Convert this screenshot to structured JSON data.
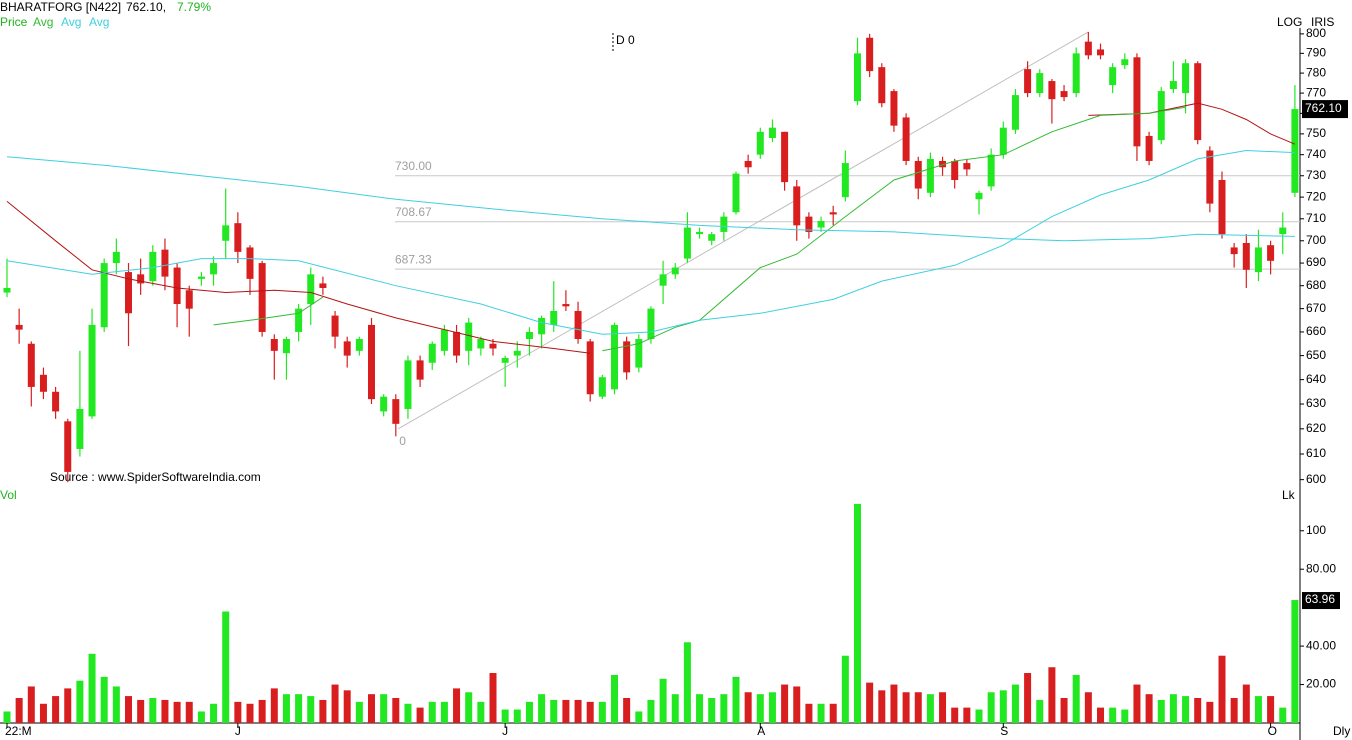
{
  "chart_data": [
    {
      "type": "candlestick",
      "header": {
        "symbol": "BHARATFORG [N422]",
        "price": "762.10,",
        "change": "7.79%"
      },
      "scale_label": "LOG",
      "indicator": "IRIS",
      "marker_label": "D 0",
      "source": "Source : www.SpiderSoftwareIndia.com",
      "log": true,
      "ylim": [
        596,
        802
      ],
      "yticks": [
        600,
        610,
        620,
        630,
        640,
        650,
        660,
        670,
        680,
        690,
        700,
        710,
        720,
        730,
        740,
        750,
        760,
        770,
        780,
        790,
        800
      ],
      "up_color": "#22e822",
      "down_color": "#d81e1e",
      "series": {
        "name": "Price",
        "open": [
          677,
          663,
          655,
          642,
          635,
          623,
          612,
          625,
          662,
          690,
          686,
          685,
          682,
          696,
          688,
          678,
          683,
          685,
          700,
          708,
          697,
          690,
          657,
          651,
          660,
          672,
          681,
          667,
          656,
          652,
          663,
          627,
          632,
          628,
          648,
          647,
          652,
          660,
          652,
          653,
          655,
          647,
          650,
          657,
          659,
          663,
          672,
          669,
          656,
          633,
          636,
          656,
          645,
          657,
          680,
          685,
          692,
          703,
          700,
          704,
          713,
          737,
          740,
          748,
          751,
          725,
          711,
          706,
          713,
          720,
          766,
          798,
          783,
          771,
          758,
          737,
          722,
          737,
          737,
          736,
          719,
          725,
          740,
          752,
          782,
          770,
          776,
          771,
          770,
          796,
          792,
          774,
          784,
          788,
          749,
          747,
          772,
          770,
          785,
          742,
          728,
          697,
          699,
          686,
          698,
          703,
          722
        ],
        "high": [
          692,
          670,
          656,
          645,
          637,
          624,
          652,
          670,
          692,
          701,
          690,
          692,
          698,
          701,
          690,
          680,
          686,
          693,
          724,
          713,
          698,
          691,
          659,
          658,
          672,
          688,
          684,
          669,
          658,
          658,
          666,
          634,
          634,
          650,
          650,
          656,
          663,
          663,
          666,
          658,
          657,
          650,
          656,
          662,
          667,
          682,
          678,
          673,
          657,
          642,
          664,
          658,
          659,
          671,
          691,
          690,
          713,
          706,
          704,
          713,
          732,
          740,
          753,
          757,
          751,
          728,
          713,
          711,
          716,
          742,
          798,
          800,
          785,
          772,
          760,
          739,
          741,
          739,
          738,
          738,
          723,
          743,
          756,
          772,
          786,
          782,
          777,
          774,
          793,
          801,
          795,
          785,
          790,
          790,
          751,
          773,
          786,
          787,
          786,
          744,
          732,
          699,
          703,
          705,
          700,
          713,
          774
        ],
        "low": [
          675,
          655,
          629,
          632,
          624,
          599,
          609,
          624,
          660,
          685,
          654,
          676,
          680,
          678,
          662,
          658,
          680,
          680,
          692,
          690,
          676,
          658,
          640,
          640,
          656,
          663,
          676,
          653,
          645,
          650,
          630,
          625,
          617,
          624,
          637,
          644,
          650,
          647,
          646,
          650,
          650,
          637,
          645,
          650,
          653,
          660,
          669,
          655,
          631,
          632,
          634,
          640,
          643,
          655,
          672,
          683,
          690,
          701,
          698,
          700,
          712,
          731,
          738,
          746,
          723,
          700,
          701,
          704,
          707,
          718,
          764,
          778,
          763,
          751,
          735,
          719,
          720,
          730,
          724,
          730,
          712,
          723,
          738,
          750,
          768,
          768,
          755,
          766,
          768,
          787,
          787,
          770,
          782,
          737,
          735,
          745,
          770,
          760,
          745,
          713,
          701,
          688,
          679,
          682,
          685,
          694,
          720
        ],
        "close": [
          679,
          661,
          637,
          635,
          627,
          603,
          628,
          663,
          690,
          695,
          668,
          681,
          695,
          684,
          672,
          670,
          684,
          690,
          707,
          695,
          683,
          660,
          652,
          657,
          670,
          685,
          679,
          658,
          650,
          657,
          632,
          633,
          622,
          648,
          640,
          655,
          661,
          650,
          664,
          657,
          653,
          649,
          652,
          660,
          666,
          669,
          671,
          657,
          634,
          641,
          663,
          643,
          657,
          670,
          685,
          688,
          706,
          704,
          703,
          711,
          731,
          734,
          751,
          753,
          727,
          707,
          704,
          709,
          712,
          736,
          790,
          781,
          765,
          754,
          737,
          724,
          738,
          734,
          728,
          733,
          722,
          740,
          753,
          769,
          770,
          780,
          767,
          768,
          790,
          789,
          789,
          783,
          787,
          744,
          737,
          771,
          776,
          785,
          747,
          717,
          703,
          694,
          687,
          697,
          691,
          706,
          762.1
        ]
      },
      "lines": [
        {
          "color": "#b31414",
          "x": [
            0,
            4,
            7,
            10,
            14,
            18,
            22,
            25,
            28,
            32,
            36,
            40,
            45,
            48,
            70,
            89,
            94,
            98,
            100,
            102,
            104,
            106
          ],
          "values": [
            718,
            700,
            687,
            683,
            679,
            677,
            678,
            677,
            672,
            666,
            661,
            656,
            653,
            651,
            null,
            759,
            760,
            765,
            762,
            757,
            750,
            745
          ]
        },
        {
          "name": "Avg",
          "color": "#33bb33",
          "x": [
            17,
            20,
            24,
            26,
            40,
            49,
            52,
            55,
            57,
            62,
            65,
            69,
            73,
            78,
            82,
            86,
            90,
            94,
            97
          ],
          "values": [
            663,
            665,
            668,
            675,
            null,
            652,
            655,
            662,
            665,
            688,
            694,
            711,
            728,
            737,
            740,
            751,
            759,
            760,
            763
          ]
        },
        {
          "name": "Avg",
          "color": "#3fd0e0",
          "x": [
            0,
            8,
            24,
            32,
            41,
            49,
            57,
            65,
            73,
            82,
            87,
            94,
            98,
            106
          ],
          "values": [
            739,
            735,
            725,
            719,
            714,
            710,
            707,
            705,
            704,
            701,
            700,
            701,
            703,
            702
          ]
        },
        {
          "name": "Avg",
          "color": "#3fd0e0",
          "x": [
            0,
            7,
            12,
            16,
            20,
            24,
            32,
            39,
            44,
            49,
            53,
            57,
            62,
            68,
            72,
            78,
            82,
            86,
            90,
            94,
            98,
            102,
            106
          ],
          "values": [
            691,
            685,
            688,
            692,
            692,
            691,
            680,
            672,
            664,
            659,
            660,
            665,
            668,
            674,
            682,
            689,
            698,
            711,
            721,
            728,
            738,
            742,
            741
          ]
        }
      ],
      "levels": [
        {
          "value": 730,
          "label": "730.00"
        },
        {
          "value": 708.67,
          "label": "708.67"
        },
        {
          "value": 687.33,
          "label": "687.33"
        }
      ],
      "trendline": {
        "label": "0",
        "x": [
          32.2,
          89
        ],
        "values": [
          620,
          801
        ]
      },
      "last_label": {
        "value": 762.1,
        "label": "762.10"
      }
    },
    {
      "type": "bar",
      "title": "Vol",
      "unit": "Lk",
      "period": "Dly",
      "categories": [
        "22:M",
        null,
        null,
        null,
        null,
        null,
        null,
        null,
        null,
        null,
        null,
        null,
        null,
        null,
        null,
        null,
        null,
        null,
        null,
        "J",
        null,
        null,
        null,
        null,
        null,
        null,
        null,
        null,
        null,
        null,
        null,
        null,
        null,
        null,
        null,
        null,
        null,
        null,
        null,
        null,
        null,
        "J",
        null,
        null,
        null,
        null,
        null,
        null,
        null,
        null,
        null,
        null,
        null,
        null,
        null,
        null,
        null,
        null,
        null,
        null,
        null,
        null,
        "A",
        null,
        null,
        null,
        null,
        null,
        null,
        null,
        null,
        null,
        null,
        null,
        null,
        null,
        null,
        null,
        null,
        null,
        null,
        null,
        "S",
        null,
        null,
        null,
        null,
        null,
        null,
        null,
        null,
        null,
        null,
        null,
        null,
        null,
        null,
        null,
        null,
        null,
        null,
        null,
        null,
        null,
        "O",
        null,
        null
      ],
      "values": [
        6,
        13,
        19,
        10,
        14,
        18,
        22,
        36,
        24,
        19,
        14,
        12,
        13,
        12,
        11,
        11,
        6,
        10,
        58,
        11,
        10,
        12,
        18,
        15,
        15,
        14,
        12,
        20,
        17,
        11,
        15,
        15,
        13,
        10,
        8,
        11,
        11,
        18,
        16,
        11,
        26,
        7,
        7,
        11,
        15,
        12,
        12,
        12,
        11,
        11,
        25,
        13,
        6,
        12,
        23,
        15,
        42,
        15,
        13,
        15,
        24,
        16,
        15,
        16,
        20,
        19,
        10,
        10,
        10,
        35,
        114,
        21,
        17,
        20,
        16,
        16,
        15,
        16,
        8,
        8,
        7,
        16,
        17,
        20,
        26,
        12,
        29,
        13,
        25,
        16,
        8,
        8,
        7,
        20,
        15,
        12,
        15,
        14,
        13,
        11,
        35,
        13,
        20,
        14,
        14,
        8,
        63.96
      ],
      "ylim": [
        0,
        116
      ],
      "yticks": [
        {
          "value": 20,
          "label": "20.00"
        },
        {
          "value": 40,
          "label": "40.00"
        },
        {
          "value": 80,
          "label": "80.00"
        },
        100
      ],
      "last_label": {
        "value": 63.96,
        "label": "63.96"
      }
    }
  ]
}
